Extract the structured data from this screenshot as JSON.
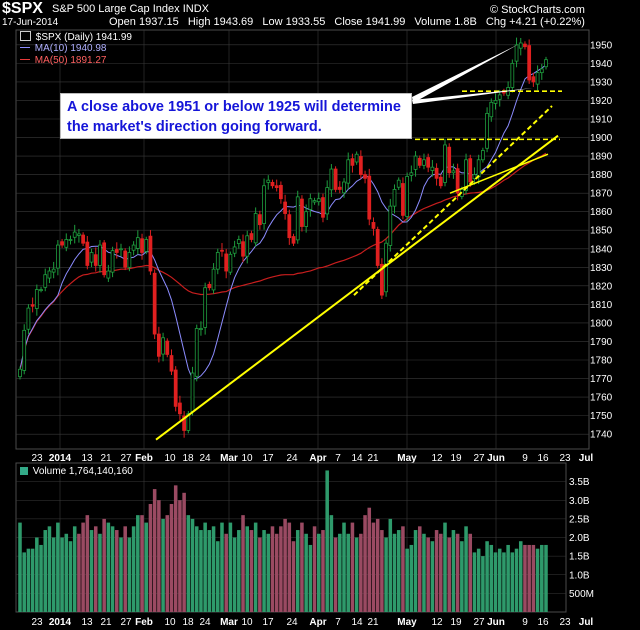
{
  "header": {
    "symbol": "$SPX",
    "name": "S&P 500 Large Cap Index",
    "exchange": "INDX",
    "date": "17-Jun-2014",
    "open_label": "Open",
    "open": "1937.15",
    "high_label": "High",
    "high": "1943.69",
    "low_label": "Low",
    "low": "1933.55",
    "close_label": "Close",
    "close": "1941.99",
    "volume_label": "Volume",
    "volume": "1.8B",
    "change_label": "Chg",
    "change": "+4.21 (+0.22%)",
    "watermark": "© StockCharts.com"
  },
  "price_legend": [
    {
      "label": "$SPX (Daily) 1941.99",
      "color": "#ffffff"
    },
    {
      "label": "MA(10) 1940.98",
      "color": "#8c8cff"
    },
    {
      "label": "MA(50) 1891.27",
      "color": "#e83a3a"
    }
  ],
  "volume_legend": {
    "label": "Volume 1,764,140,160"
  },
  "annotation": {
    "line1": "A close above 1951 or below 1925 will determine",
    "line2": "the market's direction going forward."
  },
  "colors": {
    "up": "#1e9e3e",
    "down": "#e02020",
    "ma10": "#8c8cff",
    "ma50": "#c81e1e",
    "trend": "#ffff00",
    "vol_up": "#2e9a6b",
    "vol_down": "#9a4a62",
    "grid": "#3a3a3a"
  },
  "chart_data": [
    {
      "type": "candlestick",
      "title": "$SPX S&P 500 Large Cap Index INDX",
      "ylim": [
        1732,
        1958
      ],
      "y_ticks": [
        1740,
        1750,
        1760,
        1770,
        1780,
        1790,
        1800,
        1810,
        1820,
        1830,
        1840,
        1850,
        1860,
        1870,
        1880,
        1890,
        1900,
        1910,
        1920,
        1930,
        1940,
        1950
      ],
      "x_tick_labels": [
        "23",
        "2014",
        "13",
        "21",
        "27",
        "Feb",
        "10",
        "18",
        "24",
        "Mar",
        "10",
        "17",
        "24",
        "Apr",
        "7",
        "14",
        "21",
        "May",
        "12",
        "19",
        "27",
        "Jun",
        "9",
        "16",
        "23",
        "Jul"
      ],
      "x_tick_bold": [
        "2014",
        "Feb",
        "Mar",
        "Apr",
        "May",
        "Jun",
        "Jul"
      ],
      "closes": [
        1775,
        1796,
        1808,
        1809,
        1818,
        1818,
        1826,
        1828,
        1829,
        1842,
        1842,
        1845,
        1845,
        1849,
        1848,
        1843,
        1831,
        1838,
        1831,
        1842,
        1826,
        1828,
        1839,
        1838,
        1840,
        1830,
        1838,
        1842,
        1846,
        1838,
        1845,
        1828,
        1794,
        1782,
        1792,
        1783,
        1774,
        1755,
        1751,
        1742,
        1751,
        1773,
        1797,
        1797,
        1819,
        1819,
        1829,
        1838,
        1839,
        1828,
        1837,
        1841,
        1845,
        1836,
        1847,
        1845,
        1859,
        1853,
        1874,
        1877,
        1874,
        1873,
        1867,
        1859,
        1846,
        1843,
        1868,
        1852,
        1860,
        1867,
        1866,
        1867,
        1857,
        1873,
        1883,
        1872,
        1872,
        1876,
        1888,
        1885,
        1891,
        1880,
        1878,
        1856,
        1851,
        1831,
        1815,
        1843,
        1863,
        1872,
        1877,
        1858,
        1879,
        1881,
        1890,
        1885,
        1888,
        1884,
        1884,
        1878,
        1874,
        1896,
        1881,
        1882,
        1870,
        1872,
        1888,
        1876,
        1880,
        1888,
        1893,
        1913,
        1919,
        1920,
        1923,
        1924,
        1927,
        1940,
        1950,
        1951,
        1949,
        1931,
        1930,
        1935,
        1937,
        1942
      ],
      "ma10_final": 1940.98,
      "ma50_final": 1891.27,
      "horizontal_levels": [
        1925,
        1899
      ],
      "trendlines": [
        {
          "style": "solid",
          "from": [
            "Feb 3",
            1737
          ],
          "to": [
            "Jun 23",
            1901
          ]
        },
        {
          "style": "dashed",
          "from": [
            "Apr 11",
            1815
          ],
          "to": [
            "Jun 23",
            1917
          ]
        },
        {
          "style": "solid",
          "from": [
            "May 20",
            1870
          ],
          "to": [
            "Jun 23",
            1891
          ]
        }
      ]
    },
    {
      "type": "bar",
      "title": "Volume 1,764,140,160",
      "ylim": [
        0,
        4.0
      ],
      "y_ticks": [
        {
          "v": 3.5,
          "label": "3.5B"
        },
        {
          "v": 3.0,
          "label": "3.0B"
        },
        {
          "v": 2.5,
          "label": "2.5B"
        },
        {
          "v": 2.0,
          "label": "2.0B"
        },
        {
          "v": 1.5,
          "label": "1.5B"
        },
        {
          "v": 1.0,
          "label": "1.0B"
        },
        {
          "v": 0.5,
          "label": "500M"
        }
      ],
      "volumes_billion": [
        2.4,
        1.6,
        1.7,
        1.7,
        2.0,
        1.8,
        2.2,
        2.3,
        2.0,
        2.4,
        2.0,
        2.1,
        1.9,
        2.3,
        2.1,
        2.4,
        2.6,
        2.2,
        2.3,
        2.1,
        2.5,
        2.4,
        2.3,
        2.2,
        2.0,
        2.3,
        2.0,
        2.3,
        2.6,
        2.6,
        2.4,
        2.9,
        3.3,
        3.0,
        2.5,
        2.6,
        2.9,
        3.4,
        3.0,
        3.2,
        2.6,
        2.5,
        2.3,
        2.2,
        2.4,
        2.2,
        2.3,
        1.9,
        2.4,
        2.1,
        2.4,
        2.0,
        2.2,
        2.6,
        2.3,
        2.2,
        2.4,
        2.0,
        2.2,
        2.1,
        2.3,
        2.1,
        2.3,
        2.5,
        2.4,
        1.9,
        2.2,
        2.4,
        2.1,
        1.8,
        2.3,
        2.1,
        2.2,
        3.8,
        2.6,
        2.0,
        2.1,
        2.4,
        2.1,
        2.4,
        2.0,
        2.1,
        2.6,
        2.8,
        2.4,
        2.5,
        2.2,
        2.0,
        2.5,
        2.1,
        2.2,
        2.3,
        1.7,
        1.8,
        2.2,
        2.3,
        2.1,
        2.0,
        1.9,
        2.2,
        2.1,
        2.4,
        2.0,
        2.2,
        2.1,
        1.9,
        2.3,
        2.1,
        1.6,
        1.7,
        1.5,
        1.9,
        1.8,
        1.6,
        1.7,
        1.6,
        1.8,
        1.6,
        1.7,
        1.9,
        1.8,
        1.8,
        1.8,
        1.7,
        1.8,
        1.8
      ]
    }
  ]
}
